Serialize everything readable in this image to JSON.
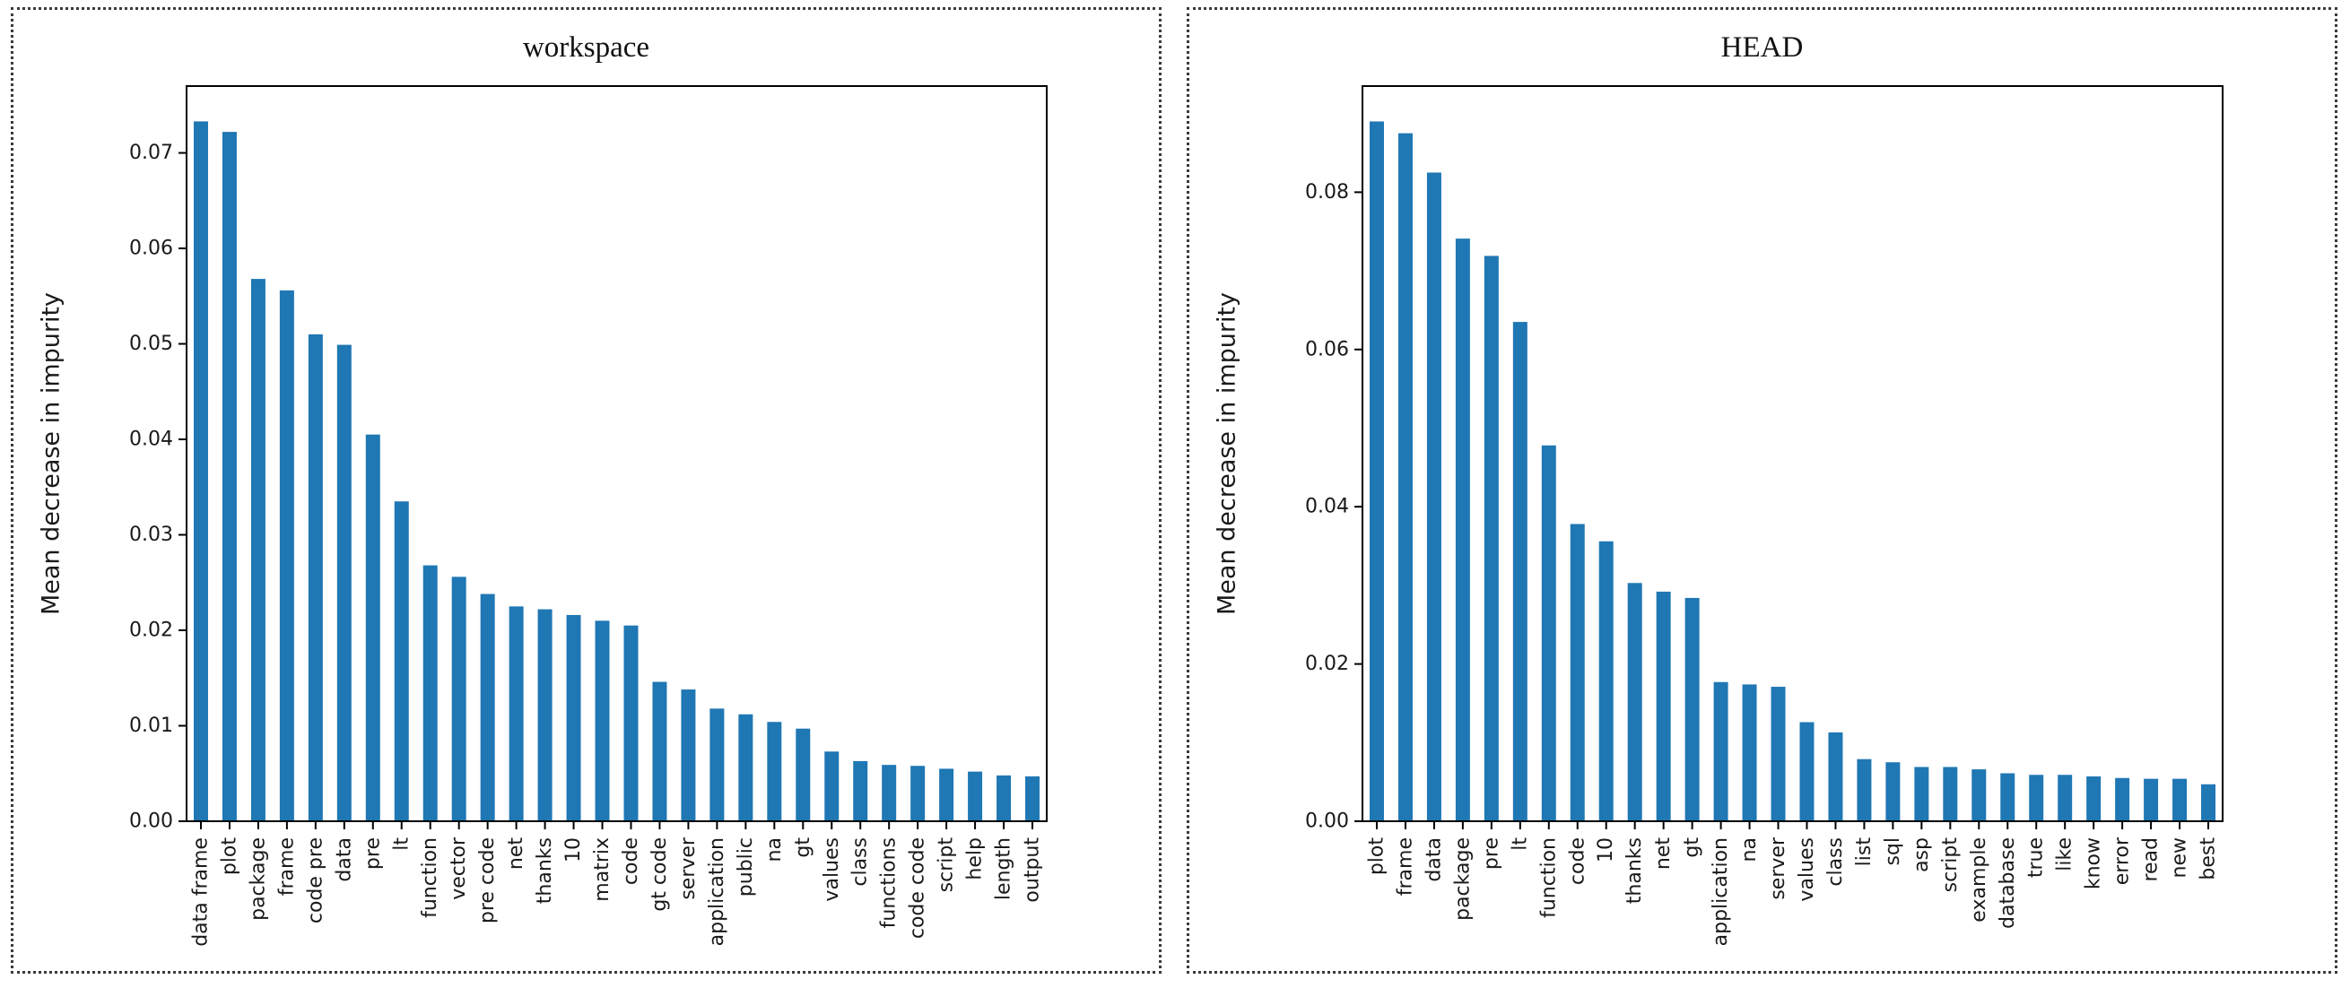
{
  "style": {
    "panel_border_color": "#3a3a3a",
    "background": "#ffffff",
    "text_color": "#1a1a1a"
  },
  "chart_data": [
    {
      "type": "bar",
      "title": "workspace",
      "xlabel": "",
      "ylabel": "Mean decrease in impurity",
      "grid": false,
      "legend": null,
      "bar_color": "#1f77b4",
      "frame_color": "#000000",
      "ylim": [
        0,
        0.077
      ],
      "ytick_values": [
        0,
        0.01,
        0.02,
        0.03,
        0.04,
        0.05,
        0.06,
        0.07
      ],
      "ytick_labels": [
        "0.00",
        "0.01",
        "0.02",
        "0.03",
        "0.04",
        "0.05",
        "0.06",
        "0.07"
      ],
      "categories": [
        "data frame",
        "plot",
        "package",
        "frame",
        "code pre",
        "data",
        "pre",
        "lt",
        "function",
        "vector",
        "pre code",
        "net",
        "thanks",
        "10",
        "matrix",
        "code",
        "gt code",
        "server",
        "application",
        "public",
        "na",
        "gt",
        "values",
        "class",
        "functions",
        "code code",
        "script",
        "help",
        "length",
        "output"
      ],
      "values": [
        0.0733,
        0.0722,
        0.0568,
        0.0556,
        0.051,
        0.0499,
        0.0405,
        0.0335,
        0.0268,
        0.0256,
        0.0238,
        0.0225,
        0.0222,
        0.0216,
        0.021,
        0.0205,
        0.0146,
        0.0138,
        0.0118,
        0.0112,
        0.0104,
        0.0097,
        0.0073,
        0.0063,
        0.0059,
        0.0058,
        0.0055,
        0.0052,
        0.0048,
        0.0047
      ]
    },
    {
      "type": "bar",
      "title": "HEAD",
      "xlabel": "",
      "ylabel": "Mean decrease in impurity",
      "grid": false,
      "legend": null,
      "bar_color": "#1f77b4",
      "frame_color": "#000000",
      "ylim": [
        0,
        0.0935
      ],
      "ytick_values": [
        0,
        0.02,
        0.04,
        0.06,
        0.08
      ],
      "ytick_labels": [
        "0.00",
        "0.02",
        "0.04",
        "0.06",
        "0.08"
      ],
      "categories": [
        "plot",
        "frame",
        "data",
        "package",
        "pre",
        "lt",
        "function",
        "code",
        "10",
        "thanks",
        "net",
        "gt",
        "application",
        "na",
        "server",
        "values",
        "class",
        "list",
        "sql",
        "asp",
        "script",
        "example",
        "database",
        "true",
        "like",
        "know",
        "error",
        "read",
        "new",
        "best"
      ],
      "values": [
        0.089,
        0.0875,
        0.0825,
        0.0741,
        0.0719,
        0.0635,
        0.0478,
        0.0378,
        0.0356,
        0.0303,
        0.0292,
        0.0284,
        0.0177,
        0.0174,
        0.0171,
        0.0126,
        0.0113,
        0.0079,
        0.0075,
        0.0069,
        0.0069,
        0.0066,
        0.0061,
        0.0059,
        0.0059,
        0.0057,
        0.0055,
        0.0054,
        0.0054,
        0.0047
      ]
    }
  ]
}
